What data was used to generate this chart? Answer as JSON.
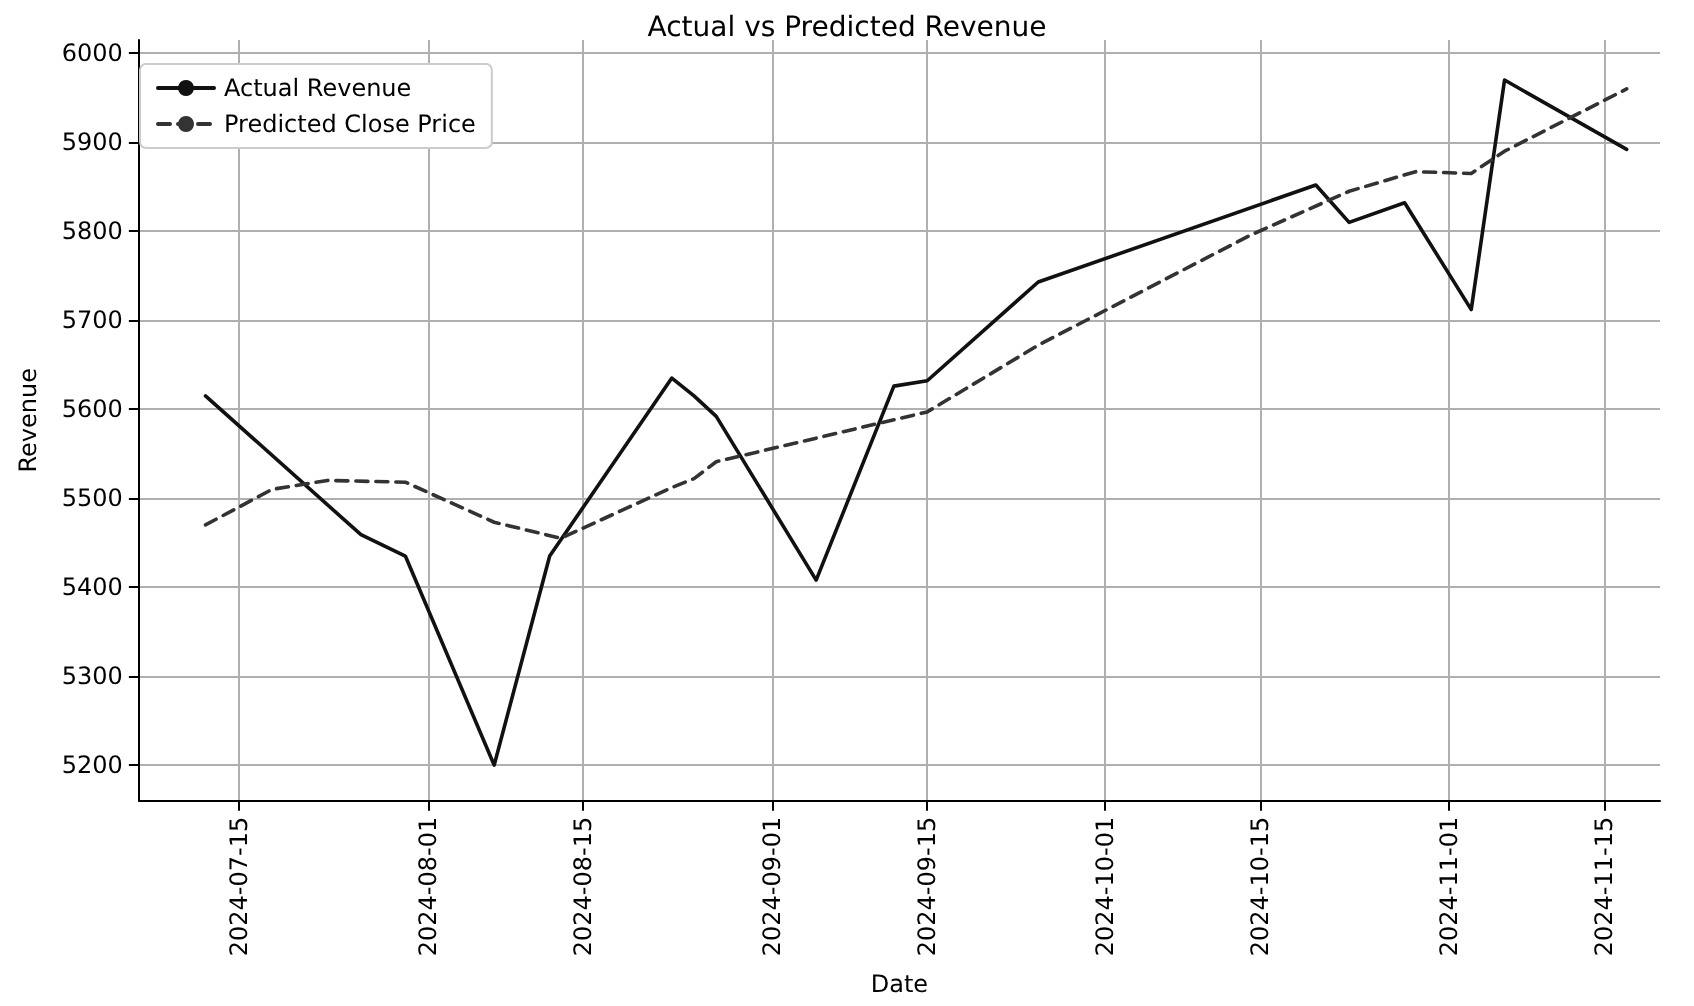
{
  "chart_data": {
    "type": "line",
    "title": "Actual vs Predicted Revenue",
    "xlabel": "Date",
    "ylabel": "Revenue",
    "xlim": [
      "2024-07-06",
      "2024-11-20"
    ],
    "ylim": [
      5160,
      6015
    ],
    "xticks": [
      "2024-07-15",
      "2024-08-01",
      "2024-08-15",
      "2024-09-01",
      "2024-09-15",
      "2024-10-01",
      "2024-10-15",
      "2024-11-01",
      "2024-11-15"
    ],
    "yticks": [
      5200,
      5300,
      5400,
      5500,
      5600,
      5700,
      5800,
      5900,
      6000
    ],
    "grid": true,
    "legend": "top left",
    "marker": "none",
    "series": [
      {
        "name": "Actual Revenue",
        "color": "#111111",
        "line_style": "solid",
        "x": [
          "2024-07-12",
          "2024-07-26",
          "2024-07-30",
          "2024-08-07",
          "2024-08-12",
          "2024-08-23",
          "2024-08-25",
          "2024-08-27",
          "2024-09-05",
          "2024-09-12",
          "2024-09-15",
          "2024-09-25",
          "2024-10-20",
          "2024-10-23",
          "2024-10-28",
          "2024-11-03",
          "2024-11-06",
          "2024-11-17"
        ],
        "values": [
          5615,
          5459,
          5435,
          5200,
          5435,
          5635,
          5615,
          5592,
          5408,
          5626,
          5632,
          5743,
          5852,
          5810,
          5832,
          5712,
          5970,
          5892
        ]
      },
      {
        "name": "Predicted Close Price",
        "color": "#333333",
        "line_style": "dashed",
        "x": [
          "2024-07-12",
          "2024-07-18",
          "2024-07-23",
          "2024-07-30",
          "2024-08-07",
          "2024-08-13",
          "2024-08-23",
          "2024-08-25",
          "2024-08-27",
          "2024-09-15",
          "2024-09-25",
          "2024-10-14",
          "2024-10-23",
          "2024-10-29",
          "2024-11-03",
          "2024-11-06",
          "2024-11-17"
        ],
        "values": [
          5470,
          5510,
          5520,
          5518,
          5473,
          5455,
          5512,
          5522,
          5541,
          5597,
          5672,
          5795,
          5845,
          5867,
          5865,
          5890,
          5960
        ]
      }
    ]
  }
}
